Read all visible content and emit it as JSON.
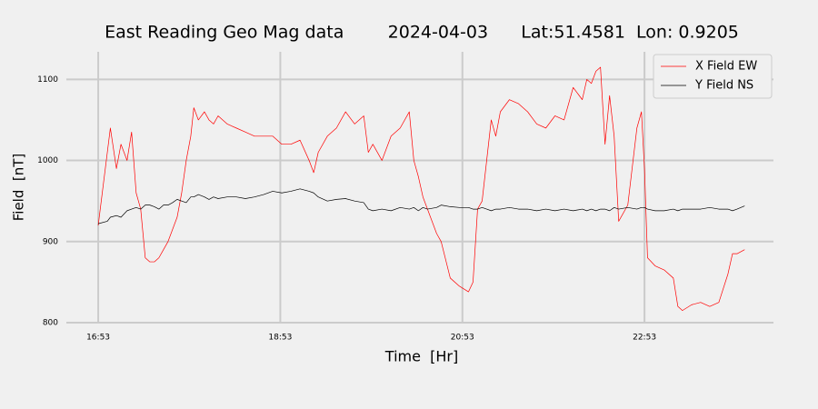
{
  "chart_data": {
    "type": "line",
    "title": "East Reading Geo Mag data        2024-04-03      Lat:51.4581  Lon: 0.9205",
    "xlabel": "Time  [Hr]",
    "ylabel": "Field  [nT]",
    "x": [
      "16:53",
      "16:59",
      "17:01",
      "17:05",
      "17:08",
      "17:12",
      "17:15",
      "17:18",
      "17:21",
      "17:24",
      "17:27",
      "17:30",
      "17:33",
      "17:36",
      "17:39",
      "17:42",
      "17:45",
      "17:48",
      "17:51",
      "17:54",
      "17:56",
      "17:59",
      "18:03",
      "18:06",
      "18:09",
      "18:12",
      "18:18",
      "18:24",
      "18:30",
      "18:36",
      "18:42",
      "18:48",
      "18:54",
      "19:00",
      "19:06",
      "19:12",
      "19:15",
      "19:18",
      "19:24",
      "19:30",
      "19:36",
      "19:42",
      "19:48",
      "19:51",
      "19:54",
      "20:00",
      "20:06",
      "20:12",
      "20:18",
      "20:21",
      "20:24",
      "20:27",
      "20:30",
      "20:36",
      "20:39",
      "20:45",
      "20:51",
      "20:57",
      "21:00",
      "21:03",
      "21:06",
      "21:09",
      "21:12",
      "21:15",
      "21:18",
      "21:24",
      "21:30",
      "21:36",
      "21:42",
      "21:48",
      "21:54",
      "22:00",
      "22:06",
      "22:12",
      "22:15",
      "22:18",
      "22:21",
      "22:24",
      "22:27",
      "22:30",
      "22:33",
      "22:36",
      "22:42",
      "22:48",
      "22:51",
      "22:53",
      "22:55",
      "23:00",
      "23:06",
      "23:12",
      "23:15",
      "23:18",
      "23:24",
      "23:30",
      "23:36",
      "23:42",
      "23:48",
      "23:51",
      "23:54",
      "23:59"
    ],
    "series": [
      {
        "name": "X Field EW",
        "color": "#ff0000",
        "values": [
          920,
          1010,
          1040,
          990,
          1020,
          1000,
          1035,
          960,
          940,
          880,
          875,
          875,
          880,
          890,
          900,
          915,
          930,
          960,
          1000,
          1030,
          1065,
          1050,
          1060,
          1050,
          1045,
          1055,
          1045,
          1040,
          1035,
          1030,
          1030,
          1030,
          1020,
          1020,
          1025,
          1000,
          985,
          1010,
          1030,
          1040,
          1060,
          1045,
          1055,
          1010,
          1020,
          1000,
          1030,
          1040,
          1060,
          1000,
          980,
          955,
          940,
          910,
          900,
          855,
          845,
          838,
          850,
          940,
          950,
          1000,
          1050,
          1030,
          1060,
          1075,
          1070,
          1060,
          1045,
          1040,
          1055,
          1050,
          1090,
          1075,
          1100,
          1095,
          1110,
          1115,
          1020,
          1080,
          1030,
          925,
          945,
          1040,
          1060,
          990,
          880,
          870,
          865,
          855,
          820,
          815,
          822,
          825,
          820,
          825,
          860,
          885,
          885,
          890
        ]
      },
      {
        "name": "Y Field NS",
        "color": "#000000",
        "values": [
          922,
          925,
          930,
          932,
          930,
          938,
          940,
          942,
          940,
          945,
          945,
          943,
          940,
          945,
          945,
          948,
          952,
          950,
          948,
          955,
          955,
          958,
          955,
          952,
          955,
          953,
          955,
          955,
          953,
          955,
          958,
          962,
          960,
          962,
          965,
          962,
          960,
          955,
          950,
          952,
          953,
          950,
          948,
          940,
          938,
          940,
          938,
          942,
          940,
          942,
          938,
          942,
          940,
          942,
          945,
          943,
          942,
          942,
          940,
          940,
          942,
          940,
          938,
          940,
          940,
          942,
          940,
          940,
          938,
          940,
          938,
          940,
          938,
          940,
          938,
          940,
          938,
          940,
          940,
          938,
          942,
          940,
          942,
          940,
          942,
          942,
          940,
          938,
          938,
          940,
          938,
          940,
          940,
          940,
          942,
          940,
          940,
          938,
          940,
          944
        ]
      }
    ],
    "xlim": [
      "16:32",
      "00:18"
    ],
    "xticks": [
      "16:53",
      "18:53",
      "20:53",
      "22:53"
    ],
    "ylim": [
      800,
      1134
    ],
    "yticks": [
      800,
      900,
      1000,
      1100
    ],
    "grid": true,
    "legend": "upper right"
  }
}
